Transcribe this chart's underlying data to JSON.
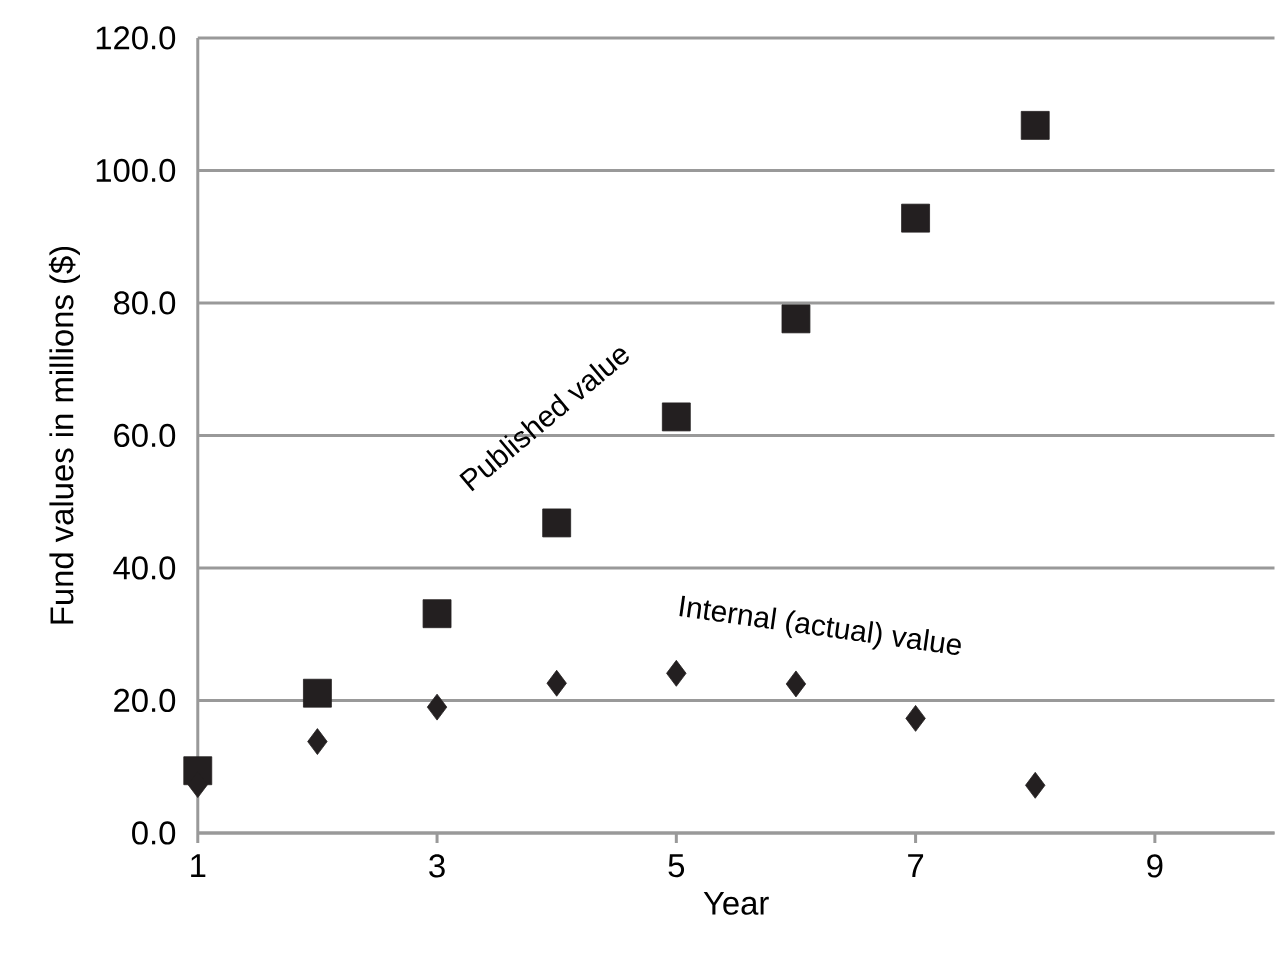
{
  "chart_data": {
    "type": "scatter",
    "xlabel": "Year",
    "ylabel": "Fund values in millions ($)",
    "xlim": [
      1,
      10
    ],
    "xticks": [
      1,
      3,
      5,
      7,
      9
    ],
    "ylim": [
      0,
      120
    ],
    "yticks": [
      {
        "value": 0,
        "label": "0.0"
      },
      {
        "value": 20,
        "label": "20.0"
      },
      {
        "value": 40,
        "label": "40.0"
      },
      {
        "value": 60,
        "label": "60.0"
      },
      {
        "value": 80,
        "label": "80.0"
      },
      {
        "value": 100,
        "label": "100.0"
      },
      {
        "value": 120,
        "label": "120.0"
      }
    ],
    "grid": "y",
    "legend": false,
    "series": [
      {
        "name": "Published value",
        "color": "#231f20",
        "marker": "square",
        "x": [
          1,
          2,
          3,
          4,
          5,
          6,
          7,
          8
        ],
        "values": [
          9.4,
          21.1,
          33.1,
          46.8,
          62.8,
          77.6,
          92.8,
          106.8
        ]
      },
      {
        "name": "Internal (actual) value",
        "color": "#231f20",
        "marker": "diamond",
        "x": [
          1,
          2,
          3,
          4,
          5,
          6,
          7,
          8
        ],
        "values": [
          7.3,
          13.8,
          19.0,
          22.6,
          24.1,
          22.5,
          17.3,
          7.2
        ]
      }
    ]
  }
}
